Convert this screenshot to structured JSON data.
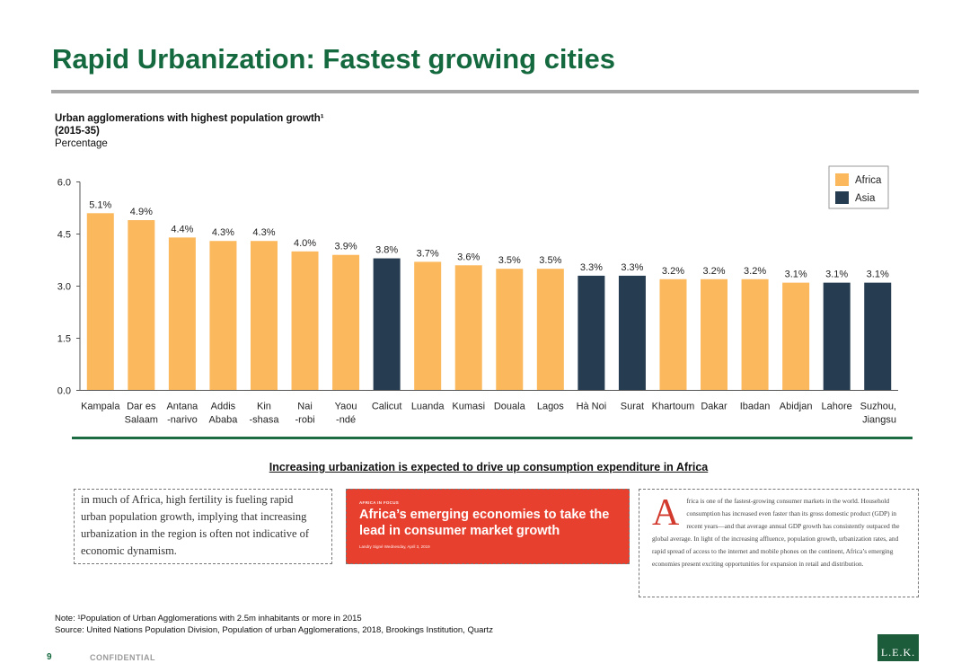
{
  "slide": {
    "title": "Rapid Urbanization: Fastest growing cities"
  },
  "chart_header": {
    "title": "Urban agglomerations with highest population growth¹",
    "period": "(2015-35)",
    "unit": "Percentage"
  },
  "colors": {
    "title_green": "#15693f",
    "africa": "#fbb85d",
    "asia": "#263c50"
  },
  "chart_data": {
    "type": "bar",
    "categories": [
      [
        "Kampala"
      ],
      [
        "Dar es",
        "Salaam"
      ],
      [
        "Antana",
        "-narivo"
      ],
      [
        "Addis",
        "Ababa"
      ],
      [
        "Kin",
        "-shasa"
      ],
      [
        "Nai",
        "-robi"
      ],
      [
        "Yaou",
        "-ndé"
      ],
      [
        "Calicut"
      ],
      [
        "Luanda"
      ],
      [
        "Kumasi"
      ],
      [
        "Douala"
      ],
      [
        "Lagos"
      ],
      [
        "Hà Noi"
      ],
      [
        "Surat"
      ],
      [
        "Khartoum"
      ],
      [
        "Dakar"
      ],
      [
        "Ibadan"
      ],
      [
        "Abidjan"
      ],
      [
        "Lahore"
      ],
      [
        "Suzhou,",
        "Jiangsu"
      ]
    ],
    "values": [
      5.1,
      4.9,
      4.4,
      4.3,
      4.3,
      4.0,
      3.9,
      3.8,
      3.7,
      3.6,
      3.5,
      3.5,
      3.3,
      3.3,
      3.2,
      3.2,
      3.2,
      3.1,
      3.1,
      3.1
    ],
    "data_labels": [
      "5.1%",
      "4.9%",
      "4.4%",
      "4.3%",
      "4.3%",
      "4.0%",
      "3.9%",
      "3.8%",
      "3.7%",
      "3.6%",
      "3.5%",
      "3.5%",
      "3.3%",
      "3.3%",
      "3.2%",
      "3.2%",
      "3.2%",
      "3.1%",
      "3.1%",
      "3.1%"
    ],
    "region": [
      "Africa",
      "Africa",
      "Africa",
      "Africa",
      "Africa",
      "Africa",
      "Africa",
      "Asia",
      "Africa",
      "Africa",
      "Africa",
      "Africa",
      "Asia",
      "Asia",
      "Africa",
      "Africa",
      "Africa",
      "Africa",
      "Asia",
      "Asia"
    ],
    "legend": [
      "Africa",
      "Asia"
    ],
    "legend_position": "top-right",
    "yticks": [
      "0.0",
      "1.5",
      "3.0",
      "4.5",
      "6.0"
    ],
    "ylim": [
      0,
      6.0
    ],
    "grid": false
  },
  "subheading": "Increasing urbanization is expected to drive up consumption expenditure in Africa",
  "quote_box": {
    "text": "in much of Africa, high fertility is fueling rapid\nurban population growth, implying that increasing\nurbanization in the region is often not indicative of\neconomic dynamism."
  },
  "article_banner": {
    "kicker": "AFRICA IN FOCUS",
    "headline": "Africa’s emerging economies to take the\nlead in consumer market growth",
    "byline": "Landry Signé    Wednesday, April 3, 2019"
  },
  "article_excerpt": {
    "dropcap": "A",
    "text": "frica is one of the fastest-growing consumer markets in the world. Household consumption has increased even faster than its gross domestic product (GDP) in recent years—and that average annual GDP growth has consistently outpaced the global average. In light of the increasing affluence, population growth, urbanization rates, and rapid spread of access to the internet and mobile phones on the continent, Africa’s emerging economies present exciting opportunities for expansion in retail and distribution."
  },
  "footer": {
    "note": "Note:  ¹Population of Urban Agglomerations with 2.5m inhabitants or more in 2015",
    "source": "Source: United Nations Population Division, Population of urban Agglomerations, 2018, Brookings Institution, Quartz",
    "page_number": "9",
    "confidential": "CONFIDENTIAL",
    "logo": "L.E.K."
  }
}
